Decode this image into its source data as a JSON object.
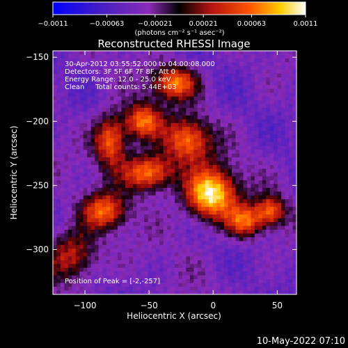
{
  "chart_data": {
    "type": "heatmap",
    "title": "Reconstructed RHESSI Image",
    "xlabel": "Heliocentric X (arcsec)",
    "ylabel": "Heliocentric Y (arcsec)",
    "xlim": [
      -125,
      65
    ],
    "ylim": [
      -335,
      -145
    ],
    "x_ticks": [
      -100,
      -50,
      0,
      50
    ],
    "x_tick_labels": [
      "−100",
      "−50",
      "0",
      "50"
    ],
    "y_ticks": [
      -150,
      -200,
      -250,
      -300
    ],
    "y_tick_labels": [
      "−150",
      "−200",
      "−250",
      "−300"
    ],
    "colorbar": {
      "range": [
        -0.0011,
        0.0011
      ],
      "ticks": [
        -0.0011,
        -0.00063,
        -0.00021,
        0.00021,
        0.00063,
        0.0011
      ],
      "tick_labels": [
        "−0.0011",
        "−0.00063",
        "−0.00021",
        "0.00021",
        "0.00063",
        "0.0011"
      ],
      "unit_label": "(photons cm⁻² s⁻¹ asec⁻²)"
    },
    "annotations": [
      "30-Apr-2012 03:55:52.000 to 04:00:08.000",
      "Detectors: 3F 5F 6F 7F 8F, Att 0",
      "Energy Range: 12.0 - 25.0 keV",
      "Clean     Total counts: 5.44E+03"
    ],
    "peak_label": "Position of Peak = [-2,-257]",
    "peak": {
      "x": -2,
      "y": -257
    },
    "sources": [
      {
        "x": -2,
        "y": -257,
        "sx": 14,
        "sy": 14,
        "a": 1.0
      },
      {
        "x": -50,
        "y": -240,
        "sx": 14,
        "sy": 10,
        "a": 0.7
      },
      {
        "x": -55,
        "y": -200,
        "sx": 10,
        "sy": 10,
        "a": 0.6
      },
      {
        "x": -30,
        "y": -170,
        "sx": 12,
        "sy": 9,
        "a": 0.6
      },
      {
        "x": -80,
        "y": -215,
        "sx": 9,
        "sy": 14,
        "a": 0.6
      },
      {
        "x": -20,
        "y": -215,
        "sx": 13,
        "sy": 12,
        "a": 0.55
      },
      {
        "x": -85,
        "y": -270,
        "sx": 12,
        "sy": 10,
        "a": 0.5
      },
      {
        "x": 25,
        "y": -278,
        "sx": 10,
        "sy": 9,
        "a": 0.5
      },
      {
        "x": 45,
        "y": -270,
        "sx": 8,
        "sy": 8,
        "a": 0.45
      },
      {
        "x": -110,
        "y": -305,
        "sx": 14,
        "sy": 14,
        "a": 0.35
      }
    ],
    "grid": false
  },
  "footer_timestamp": "10-May-2022 07:10"
}
